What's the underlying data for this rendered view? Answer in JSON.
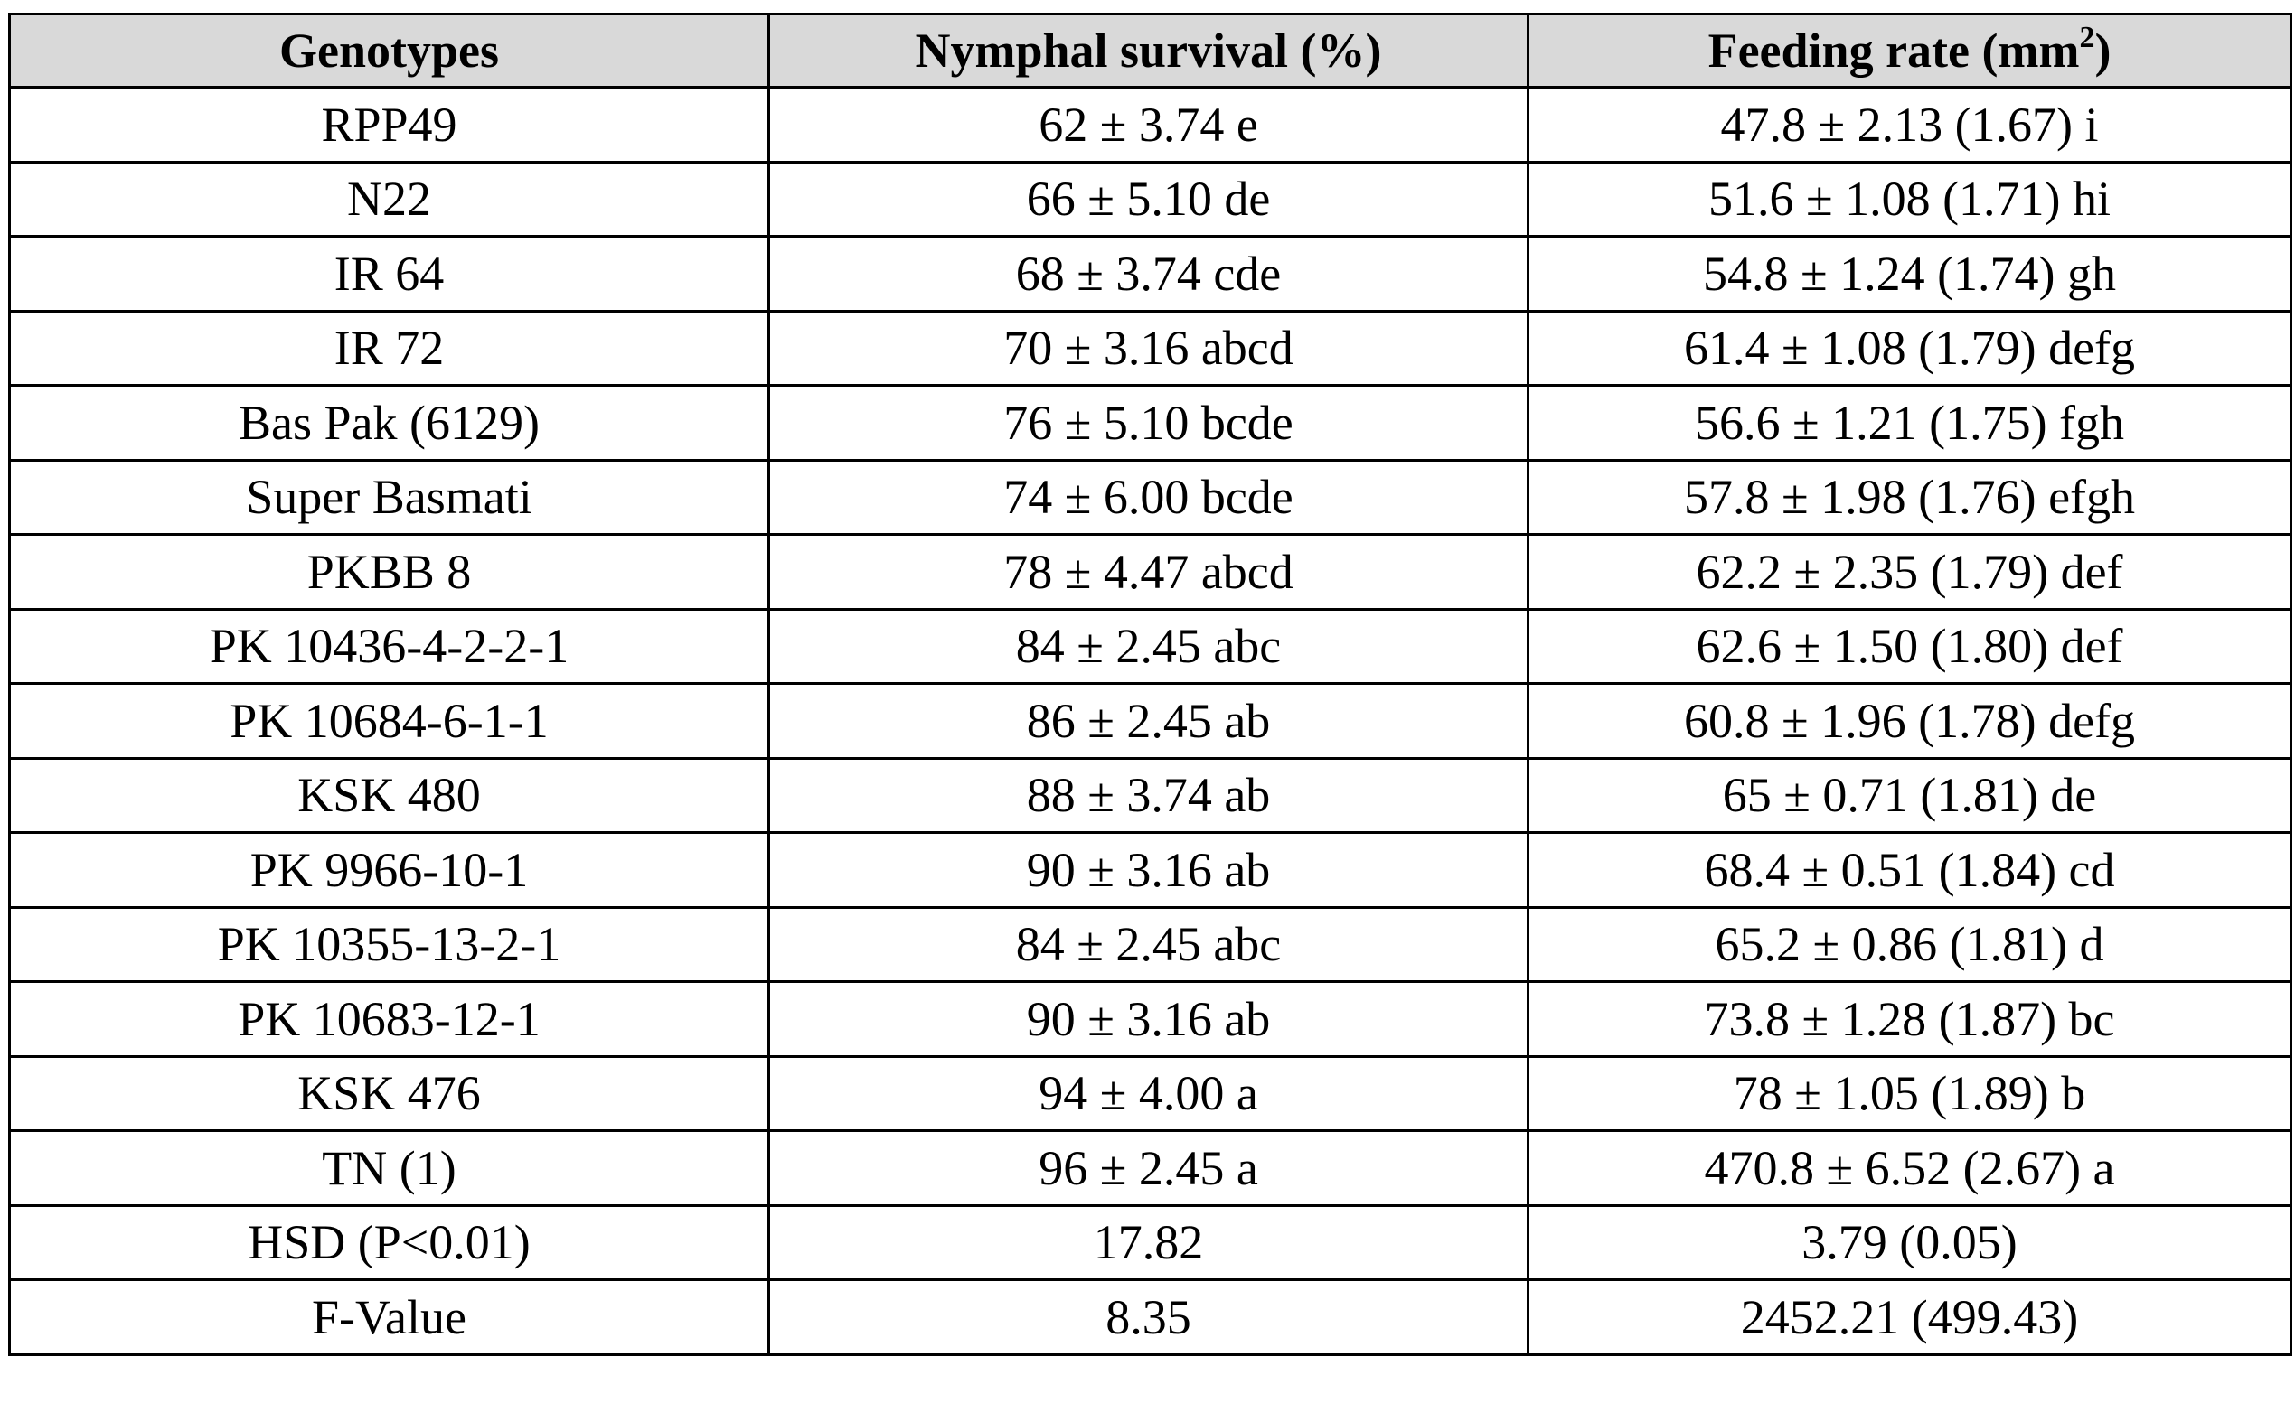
{
  "headers": {
    "genotypes": "Genotypes",
    "nymphal_survival": "Nymphal survival (%)",
    "feeding_rate": "Feeding rate (mm",
    "feeding_rate_sup": "2",
    "feeding_rate_close": ")"
  },
  "rows": [
    {
      "genotype": "RPP49",
      "survival": "62 ± 3.74 e",
      "feeding": "47.8 ± 2.13 (1.67) i"
    },
    {
      "genotype": "N22",
      "survival": "66 ± 5.10 de",
      "feeding": "51.6 ± 1.08 (1.71) hi"
    },
    {
      "genotype": "IR 64",
      "survival": "68 ± 3.74 cde",
      "feeding": "54.8 ± 1.24 (1.74) gh"
    },
    {
      "genotype": "IR 72",
      "survival": "70 ± 3.16 abcd",
      "feeding": "61.4 ± 1.08 (1.79) defg"
    },
    {
      "genotype": "Bas Pak (6129)",
      "survival": "76 ± 5.10 bcde",
      "feeding": "56.6 ± 1.21 (1.75) fgh"
    },
    {
      "genotype": "Super Basmati",
      "survival": "74 ± 6.00 bcde",
      "feeding": "57.8 ± 1.98 (1.76) efgh"
    },
    {
      "genotype": "PKBB 8",
      "survival": "78 ± 4.47 abcd",
      "feeding": "62.2 ± 2.35 (1.79) def"
    },
    {
      "genotype": "PK 10436-4-2-2-1",
      "survival": "84 ± 2.45 abc",
      "feeding": "62.6 ± 1.50 (1.80) def"
    },
    {
      "genotype": "PK 10684-6-1-1",
      "survival": "86 ± 2.45 ab",
      "feeding": "60.8 ± 1.96 (1.78) defg"
    },
    {
      "genotype": "KSK 480",
      "survival": "88 ± 3.74 ab",
      "feeding": "65 ± 0.71 (1.81) de"
    },
    {
      "genotype": "PK 9966-10-1",
      "survival": "90 ± 3.16 ab",
      "feeding": "68.4 ± 0.51 (1.84) cd"
    },
    {
      "genotype": "PK 10355-13-2-1",
      "survival": "84 ± 2.45 abc",
      "feeding": "65.2 ± 0.86 (1.81) d"
    },
    {
      "genotype": "PK 10683-12-1",
      "survival": "90 ± 3.16 ab",
      "feeding": "73.8 ± 1.28 (1.87) bc"
    },
    {
      "genotype": "KSK 476",
      "survival": "94 ± 4.00 a",
      "feeding": "78 ± 1.05 (1.89) b"
    },
    {
      "genotype": "TN (1)",
      "survival": "96 ± 2.45 a",
      "feeding": "470.8 ± 6.52 (2.67) a"
    },
    {
      "genotype": "HSD (P<0.01)",
      "survival": "17.82",
      "feeding": "3.79 (0.05)"
    },
    {
      "genotype": "F-Value",
      "survival": "8.35",
      "feeding": "2452.21 (499.43)"
    }
  ],
  "colors": {
    "header_bg": "#d9d9d9",
    "border": "#000000",
    "text": "#000000"
  }
}
